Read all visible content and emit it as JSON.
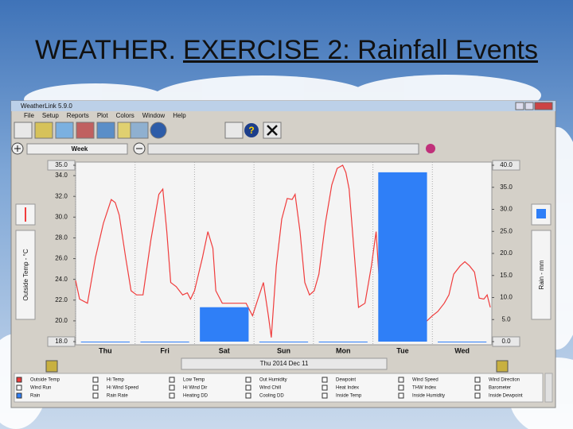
{
  "header": {
    "prefix": "WEATHER.",
    "underlined": "EXERCISE 2: Rainfall Events"
  },
  "window": {
    "title": "WeatherLink 5.9.0",
    "menu": [
      "File",
      "Setup",
      "Reports",
      "Plot",
      "Colors",
      "Window",
      "Help"
    ],
    "span": "Week",
    "date": "Thu 2014 Dec 11"
  },
  "chart_data": {
    "type": "line",
    "categories": [
      "Thu",
      "Fri",
      "Sat",
      "Sun",
      "Mon",
      "Tue",
      "Wed"
    ],
    "y_label": "Outside Temp - °C",
    "y2_label": "Rain - mm",
    "xlim": [
      0,
      168
    ],
    "ylim": [
      18,
      35
    ],
    "yticks": [
      {
        "value": 18,
        "label": "18.0"
      },
      {
        "value": 20,
        "label": "20.0"
      },
      {
        "value": 22,
        "label": "22.0"
      },
      {
        "value": 24,
        "label": "24.0"
      },
      {
        "value": 26,
        "label": "26.0"
      },
      {
        "value": 28,
        "label": "28.0"
      },
      {
        "value": 30,
        "label": "30.0"
      },
      {
        "value": 32,
        "label": "32.0"
      },
      {
        "value": 34,
        "label": "34.0"
      },
      {
        "value": 35,
        "label": "35.0"
      }
    ],
    "y2lim": [
      0,
      40
    ],
    "y2ticks": [
      {
        "value": 0,
        "label": "0.0"
      },
      {
        "value": 5,
        "label": "5.0"
      },
      {
        "value": 10,
        "label": "10.0"
      },
      {
        "value": 15,
        "label": "15.0"
      },
      {
        "value": 20,
        "label": "20.0"
      },
      {
        "value": 25,
        "label": "25.0"
      },
      {
        "value": 30,
        "label": "30.0"
      },
      {
        "value": 35,
        "label": "35.0"
      },
      {
        "value": 40,
        "label": "40.0"
      }
    ],
    "grid": true,
    "x": [
      0,
      1.6,
      4.8,
      8,
      11.2,
      14.4,
      16,
      17.6,
      20.2,
      22.4,
      24.6,
      27.2,
      30.4,
      33.6,
      35.2,
      36.8,
      38.4,
      40.6,
      43.2,
      45.1,
      46.4,
      48,
      49.6,
      51.2,
      53.4,
      55.4,
      56.6,
      59.2,
      62.4,
      65.6,
      68.8,
      71.4,
      73.6,
      75.8,
      77.8,
      79,
      81,
      83.2,
      85.4,
      87.4,
      88.6,
      90.6,
      92.5,
      94.4,
      96.3,
      98.2,
      100.8,
      103.4,
      105.6,
      107.8,
      109.1,
      110.4,
      112.3,
      114.2,
      116.8,
      119.4,
      121.3,
      122.6,
      123.8,
      126.4,
      128.3,
      130.2,
      132.8,
      134.7,
      136,
      137.9,
      139.8,
      141.8,
      144,
      146.2,
      148.8,
      150.7,
      152.6,
      155.2,
      157.1,
      159,
      161,
      162.9,
      164.8,
      166.1,
      167.4
    ],
    "series": [
      {
        "name": "Outside Temp",
        "type": "line",
        "color": "#f03c3c",
        "values": [
          23.9,
          22.1,
          21.7,
          26.1,
          29.4,
          31.7,
          31.4,
          30.2,
          26.1,
          22.9,
          22.5,
          22.5,
          27.8,
          32.2,
          32.7,
          28.6,
          23.7,
          23.3,
          22.5,
          22.7,
          22.1,
          22.9,
          24.5,
          26.1,
          28.6,
          27.0,
          22.9,
          21.7,
          21.7,
          21.7,
          21.7,
          20.5,
          22.1,
          23.7,
          20.5,
          18.4,
          25.3,
          29.8,
          31.8,
          31.7,
          32.2,
          28.6,
          23.7,
          22.5,
          22.9,
          24.5,
          29.4,
          33.1,
          34.7,
          35.0,
          34.3,
          32.7,
          27.0,
          21.3,
          21.7,
          25.3,
          28.6,
          23.7,
          21.7,
          21.3,
          21.7,
          21.7,
          22.1,
          24.1,
          21.7,
          20.9,
          20.5,
          20.0,
          20.5,
          20.9,
          21.7,
          22.5,
          24.5,
          25.3,
          25.7,
          25.3,
          24.7,
          22.2,
          22.1,
          22.5,
          21.3
        ]
      },
      {
        "name": "Rain",
        "type": "bar",
        "axis": "y2",
        "color": "#2f7ff7",
        "values": [
          0,
          0,
          7.8,
          0,
          0,
          38.4,
          0
        ]
      }
    ]
  },
  "checklist": [
    "Wind Run",
    "Hi Temp",
    "Hi Wind Speed",
    "Rain Rate",
    "Low Temp",
    "Hi Wind Dir",
    "Heating DD",
    "Out Humidity",
    "Wind Chill",
    "Cooling DD",
    "Dewpoint",
    "Heat Index",
    "Inside Temp",
    "Wind Speed",
    "THW Index",
    "Inside Humidity",
    "Wind Direction",
    "Barometer",
    "Inside Dewpoint"
  ]
}
